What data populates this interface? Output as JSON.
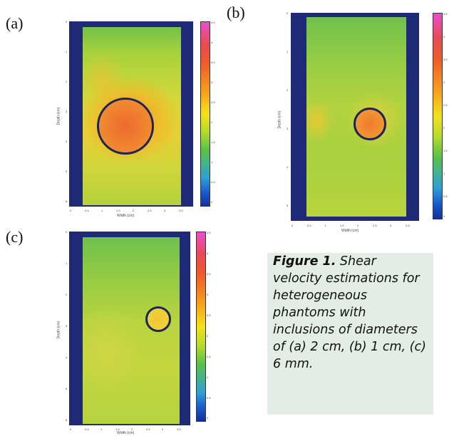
{
  "panels": [
    {
      "label": "(a)",
      "ylabel": "Depth (cm)",
      "xlabel": "Width (cm)",
      "xticks": [
        "0",
        "0.5",
        "1",
        "1.5",
        "2",
        "2.5",
        "3",
        "3.5"
      ],
      "yticks": [
        "0",
        "1",
        "2",
        "3",
        "4",
        "5",
        "6"
      ],
      "cticks": [
        "4.5",
        "4",
        "3.5",
        "3",
        "2.5",
        "2",
        "1.5",
        "1",
        "0.5",
        "0"
      ]
    },
    {
      "label": "(b)",
      "ylabel": "Depth (cm)",
      "xlabel": "Width (cm)",
      "xticks": [
        "0",
        "0.5",
        "1",
        "1.5",
        "2",
        "2.5",
        "3",
        "3.5"
      ],
      "yticks": [
        "0",
        "1",
        "2",
        "3",
        "4",
        "5"
      ],
      "cticks": [
        "4.5",
        "4",
        "3.5",
        "3",
        "2.5",
        "2",
        "1.5",
        "1",
        "0.5",
        "0"
      ]
    },
    {
      "label": "(c)",
      "ylabel": "Depth (cm)",
      "xlabel": "Width (cm)",
      "xticks": [
        "0",
        "0.5",
        "1",
        "1.5",
        "2",
        "2.5",
        "3",
        "3.5"
      ],
      "yticks": [
        "0",
        "1",
        "2",
        "3",
        "4",
        "5",
        "6"
      ],
      "cticks": [
        "4.5",
        "4",
        "3.5",
        "3",
        "2.5",
        "2",
        "1.5",
        "1",
        "0.5",
        "0"
      ]
    }
  ],
  "caption": {
    "figure_label": "Figure 1.",
    "text": " Shear velocity estimations for heterogeneous phantoms with inclusions of diameters of (a) 2 cm, (b) 1 cm, (c) 6 mm."
  },
  "colors": {
    "frame": "#1e2a78",
    "caption_bg": "#e4ece8"
  }
}
